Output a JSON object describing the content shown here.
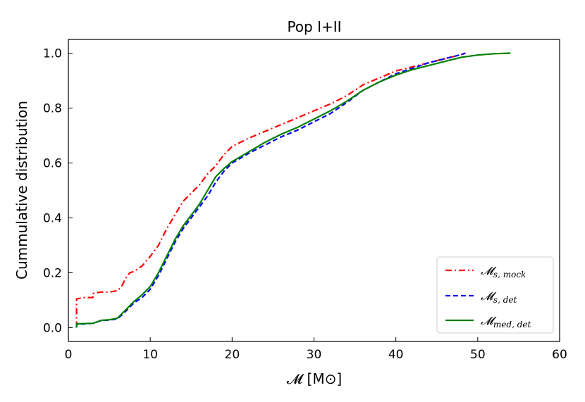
{
  "chart_data": {
    "type": "line",
    "title": "Pop I+II",
    "xlabel": "𝓜  [M⊙]",
    "ylabel": "Cummulative distribution",
    "xlim": [
      0,
      60
    ],
    "ylim": [
      -0.05,
      1.05
    ],
    "xticks": [
      "0",
      "10",
      "20",
      "30",
      "40",
      "50",
      "60"
    ],
    "xtick_values": [
      0,
      10,
      20,
      30,
      40,
      50,
      60
    ],
    "yticks": [
      "0.0",
      "0.2",
      "0.4",
      "0.6",
      "0.8",
      "1.0"
    ],
    "ytick_values": [
      0.0,
      0.2,
      0.4,
      0.6,
      0.8,
      1.0
    ],
    "grid": false,
    "legend_position": "lower right",
    "series": [
      {
        "name": "𝓜s, mock",
        "color": "#ff0000",
        "style": "dashdot",
        "x": [
          1.0,
          1.0,
          2.0,
          3.0,
          3.0,
          4.0,
          5.0,
          6.0,
          6.5,
          7.0,
          7.5,
          8.0,
          9.0,
          10.0,
          11.0,
          12.0,
          13.0,
          14.0,
          15.0,
          16.0,
          17.0,
          18.0,
          19.0,
          20.0,
          22.0,
          24.0,
          26.0,
          28.0,
          30.0,
          32.0,
          34.0,
          36.0,
          38.0,
          40.0,
          42.0,
          44.0,
          46.0,
          48.0,
          48.5
        ],
        "y": [
          0.0,
          0.105,
          0.11,
          0.11,
          0.125,
          0.13,
          0.13,
          0.135,
          0.15,
          0.18,
          0.2,
          0.205,
          0.225,
          0.26,
          0.3,
          0.36,
          0.41,
          0.46,
          0.49,
          0.52,
          0.56,
          0.59,
          0.63,
          0.66,
          0.69,
          0.715,
          0.74,
          0.765,
          0.79,
          0.815,
          0.845,
          0.885,
          0.91,
          0.935,
          0.95,
          0.965,
          0.98,
          0.995,
          1.0
        ]
      },
      {
        "name": "𝓜s, det",
        "color": "#0000ff",
        "style": "dashed",
        "x": [
          1.0,
          1.0,
          2.0,
          3.0,
          4.0,
          5.0,
          6.0,
          7.0,
          8.0,
          9.0,
          10.0,
          11.0,
          12.0,
          13.0,
          14.0,
          15.0,
          16.0,
          17.0,
          18.0,
          19.0,
          20.0,
          22.0,
          24.0,
          26.0,
          28.0,
          30.0,
          32.0,
          34.0,
          36.0,
          38.0,
          40.0,
          42.0,
          44.0,
          46.0,
          48.0,
          48.5
        ],
        "y": [
          0.0,
          0.012,
          0.014,
          0.016,
          0.026,
          0.028,
          0.032,
          0.06,
          0.09,
          0.11,
          0.14,
          0.19,
          0.25,
          0.31,
          0.36,
          0.4,
          0.44,
          0.48,
          0.53,
          0.57,
          0.6,
          0.635,
          0.665,
          0.695,
          0.72,
          0.75,
          0.78,
          0.82,
          0.865,
          0.895,
          0.925,
          0.945,
          0.965,
          0.98,
          0.995,
          1.0
        ]
      },
      {
        "name": "𝓜med, det",
        "color": "#008000",
        "style": "solid",
        "x": [
          1.0,
          1.0,
          2.0,
          3.0,
          4.0,
          5.0,
          6.0,
          7.0,
          8.0,
          9.0,
          10.0,
          11.0,
          12.0,
          13.0,
          14.0,
          15.0,
          16.0,
          17.0,
          18.0,
          19.0,
          20.0,
          22.0,
          24.0,
          26.0,
          28.0,
          30.0,
          32.0,
          34.0,
          36.0,
          38.0,
          40.0,
          42.0,
          44.0,
          46.0,
          48.0,
          50.0,
          52.0,
          54.0
        ],
        "y": [
          0.0,
          0.014,
          0.015,
          0.016,
          0.027,
          0.029,
          0.035,
          0.065,
          0.095,
          0.12,
          0.15,
          0.2,
          0.26,
          0.32,
          0.37,
          0.41,
          0.45,
          0.5,
          0.55,
          0.58,
          0.605,
          0.64,
          0.675,
          0.705,
          0.73,
          0.76,
          0.79,
          0.825,
          0.865,
          0.895,
          0.92,
          0.94,
          0.955,
          0.97,
          0.985,
          0.993,
          0.998,
          1.0
        ]
      }
    ],
    "legend_labels": [
      {
        "main": "𝓜",
        "sub": "s, mock"
      },
      {
        "main": "𝓜",
        "sub": "s, det"
      },
      {
        "main": "𝓜",
        "sub": "med, det"
      }
    ]
  }
}
